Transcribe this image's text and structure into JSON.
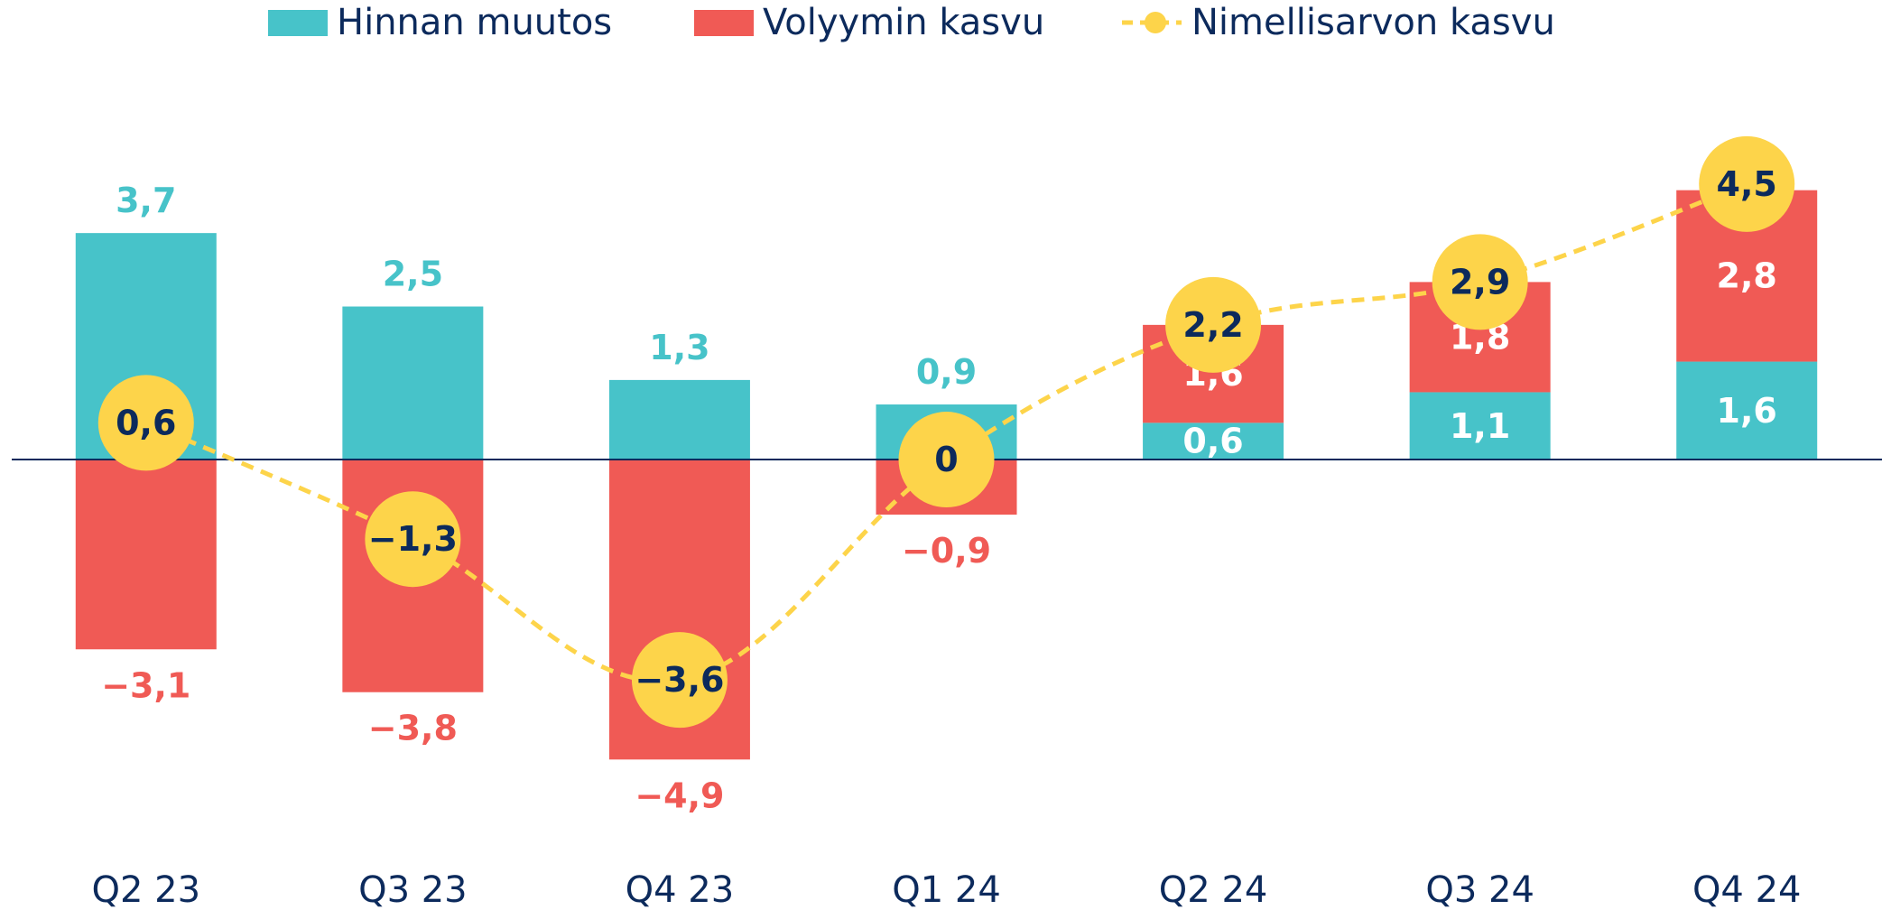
{
  "chart_data": {
    "type": "bar",
    "categories": [
      "Q2 23",
      "Q3 23",
      "Q4 23",
      "Q1 24",
      "Q2 24",
      "Q3 24",
      "Q4 24"
    ],
    "stacked": true,
    "ylim": [
      -5.5,
      5
    ],
    "series": [
      {
        "name": "Hinnan muutos",
        "color": "#47c3c9",
        "values": [
          3.7,
          2.5,
          1.3,
          0.9,
          0.6,
          1.1,
          1.6
        ],
        "value_labels": [
          "3,7",
          "2,5",
          "1,3",
          "0,9",
          "0,6",
          "1,1",
          "1,6"
        ]
      },
      {
        "name": "Volyymin kasvu",
        "color": "#f05a55",
        "values": [
          -3.1,
          -3.8,
          -4.9,
          -0.9,
          1.6,
          1.8,
          2.8
        ],
        "value_labels": [
          "−3,1",
          "−3,8",
          "−4,9",
          "−0,9",
          "1,6",
          "1,8",
          "2,8"
        ]
      },
      {
        "name": "Nimellisarvon kasvu",
        "color": "#fdd44a",
        "type": "line",
        "values": [
          0.6,
          -1.3,
          -3.6,
          0,
          2.2,
          2.9,
          4.5
        ],
        "value_labels": [
          "0,6",
          "−1,3",
          "−3,6",
          "0",
          "2,2",
          "2,9",
          "4,5"
        ]
      }
    ]
  }
}
